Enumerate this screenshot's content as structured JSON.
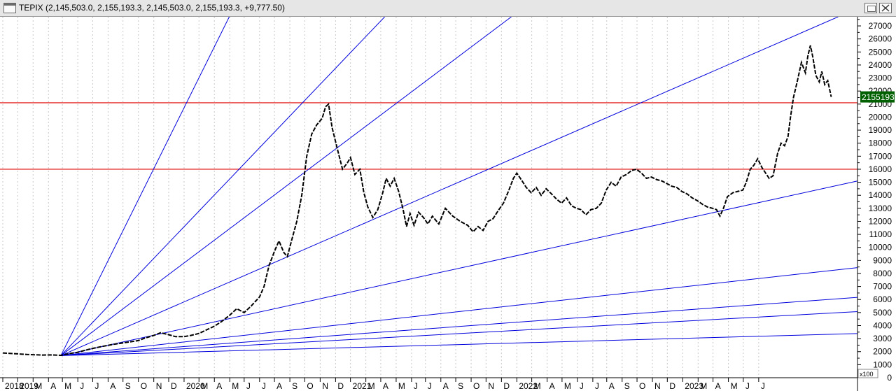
{
  "window": {
    "title": "TEPIX (2,145,503.0, 2,155,193.3, 2,145,503.0, 2,155,193.3, +9,777.50)",
    "restore_icon": "restore-icon",
    "close_icon": "close-icon"
  },
  "chart_data": {
    "type": "line",
    "price_flag": "2155193",
    "multiplier_label": "x100",
    "y_ticks": [
      0,
      1000,
      2000,
      3000,
      4000,
      5000,
      6000,
      7000,
      8000,
      9000,
      10000,
      11000,
      12000,
      13000,
      14000,
      15000,
      16000,
      17000,
      18000,
      19000,
      20000,
      21000,
      22000,
      23000,
      24000,
      25000,
      26000,
      27000
    ],
    "ylim": [
      0,
      27700
    ],
    "x_tick_labels": [
      "2018",
      "2019",
      "M",
      "A",
      "M",
      "J",
      "J",
      "A",
      "S",
      "O",
      "N",
      "D",
      "2020",
      "M",
      "A",
      "M",
      "J",
      "J",
      "A",
      "S",
      "O",
      "N",
      "D",
      "2021",
      "M",
      "A",
      "M",
      "J",
      "J",
      "A",
      "S",
      "O",
      "N",
      "D",
      "2022",
      "M",
      "A",
      "M",
      "J",
      "J",
      "A",
      "S",
      "O",
      "N",
      "D",
      "2023",
      "M",
      "A",
      "M",
      "J",
      "J"
    ],
    "horizontal_lines": [
      {
        "value": 21100,
        "color": "#e00000"
      },
      {
        "value": 16000,
        "color": "#e00000"
      }
    ],
    "fan_origin": {
      "date": "2019-02-26",
      "value": 1700
    },
    "fan_lines": [
      {
        "date": "2020-01-31",
        "value": 27700
      },
      {
        "date": "2020-12-09",
        "value": 27700
      },
      {
        "date": "2021-08-21",
        "value": 27700
      },
      {
        "date": "2023-06-10",
        "value": 27700
      },
      {
        "date": "2023-07-31",
        "value": 15200
      },
      {
        "date": "2023-07-31",
        "value": 8500
      },
      {
        "date": "2023-07-31",
        "value": 6200
      },
      {
        "date": "2023-07-31",
        "value": 5100
      },
      {
        "date": "2023-07-31",
        "value": 3400
      }
    ],
    "colors": {
      "price": "#000000",
      "fan": "#0000dd",
      "horizontal": "#e00000",
      "flag_bg": "#006000",
      "flag_text": "#ffffff"
    },
    "series": [
      {
        "points": [
          [
            "2018-11-01",
            1900
          ],
          [
            "2018-12-01",
            1830
          ],
          [
            "2018-12-20",
            1780
          ],
          [
            "2019-01-05",
            1760
          ],
          [
            "2019-01-20",
            1740
          ],
          [
            "2019-02-05",
            1750
          ],
          [
            "2019-02-26",
            1720
          ],
          [
            "2019-03-15",
            1850
          ],
          [
            "2019-04-01",
            1950
          ],
          [
            "2019-04-15",
            2100
          ],
          [
            "2019-05-01",
            2250
          ],
          [
            "2019-05-20",
            2400
          ],
          [
            "2019-06-10",
            2550
          ],
          [
            "2019-06-28",
            2650
          ],
          [
            "2019-07-15",
            2750
          ],
          [
            "2019-08-01",
            2850
          ],
          [
            "2019-08-15",
            3050
          ],
          [
            "2019-09-01",
            3250
          ],
          [
            "2019-09-15",
            3450
          ],
          [
            "2019-10-01",
            3300
          ],
          [
            "2019-10-15",
            3150
          ],
          [
            "2019-11-01",
            3150
          ],
          [
            "2019-11-15",
            3250
          ],
          [
            "2019-12-01",
            3400
          ],
          [
            "2019-12-15",
            3650
          ],
          [
            "2020-01-01",
            3950
          ],
          [
            "2020-01-15",
            4300
          ],
          [
            "2020-02-01",
            4800
          ],
          [
            "2020-02-15",
            5300
          ],
          [
            "2020-03-01",
            5000
          ],
          [
            "2020-03-15",
            5500
          ],
          [
            "2020-04-01",
            6200
          ],
          [
            "2020-04-10",
            7000
          ],
          [
            "2020-04-20",
            8600
          ],
          [
            "2020-05-01",
            9700
          ],
          [
            "2020-05-10",
            10500
          ],
          [
            "2020-05-20",
            9600
          ],
          [
            "2020-05-27",
            9300
          ],
          [
            "2020-06-05",
            10600
          ],
          [
            "2020-06-15",
            12000
          ],
          [
            "2020-06-25",
            14000
          ],
          [
            "2020-07-05",
            17000
          ],
          [
            "2020-07-15",
            18700
          ],
          [
            "2020-07-25",
            19400
          ],
          [
            "2020-08-05",
            19900
          ],
          [
            "2020-08-12",
            20800
          ],
          [
            "2020-08-18",
            21000
          ],
          [
            "2020-08-25",
            19200
          ],
          [
            "2020-09-05",
            17500
          ],
          [
            "2020-09-15",
            16000
          ],
          [
            "2020-09-25",
            16500
          ],
          [
            "2020-10-01",
            16900
          ],
          [
            "2020-10-10",
            15600
          ],
          [
            "2020-10-20",
            16000
          ],
          [
            "2020-10-28",
            14200
          ],
          [
            "2020-11-05",
            13100
          ],
          [
            "2020-11-15",
            12300
          ],
          [
            "2020-11-25",
            12900
          ],
          [
            "2020-12-05",
            14200
          ],
          [
            "2020-12-12",
            15300
          ],
          [
            "2020-12-20",
            14700
          ],
          [
            "2020-12-28",
            15300
          ],
          [
            "2021-01-06",
            14300
          ],
          [
            "2021-01-15",
            12900
          ],
          [
            "2021-01-22",
            11600
          ],
          [
            "2021-01-29",
            12600
          ],
          [
            "2021-02-06",
            11700
          ],
          [
            "2021-02-15",
            12700
          ],
          [
            "2021-02-25",
            12300
          ],
          [
            "2021-03-06",
            11800
          ],
          [
            "2021-03-15",
            12400
          ],
          [
            "2021-03-28",
            11800
          ],
          [
            "2021-04-10",
            13000
          ],
          [
            "2021-04-25",
            12400
          ],
          [
            "2021-05-10",
            12000
          ],
          [
            "2021-05-25",
            11700
          ],
          [
            "2021-06-05",
            11200
          ],
          [
            "2021-06-15",
            11600
          ],
          [
            "2021-06-25",
            11300
          ],
          [
            "2021-07-05",
            12000
          ],
          [
            "2021-07-15",
            12200
          ],
          [
            "2021-07-25",
            12800
          ],
          [
            "2021-08-05",
            13400
          ],
          [
            "2021-08-15",
            14300
          ],
          [
            "2021-08-25",
            15300
          ],
          [
            "2021-09-01",
            15700
          ],
          [
            "2021-09-10",
            15200
          ],
          [
            "2021-09-20",
            14600
          ],
          [
            "2021-09-30",
            14200
          ],
          [
            "2021-10-10",
            14600
          ],
          [
            "2021-10-20",
            14000
          ],
          [
            "2021-10-30",
            14500
          ],
          [
            "2021-11-10",
            14100
          ],
          [
            "2021-11-20",
            13700
          ],
          [
            "2021-11-30",
            13400
          ],
          [
            "2021-12-10",
            13800
          ],
          [
            "2021-12-20",
            13200
          ],
          [
            "2021-12-30",
            13000
          ],
          [
            "2022-01-08",
            12900
          ],
          [
            "2022-01-18",
            12500
          ],
          [
            "2022-01-28",
            12900
          ],
          [
            "2022-02-08",
            13000
          ],
          [
            "2022-02-18",
            13400
          ],
          [
            "2022-02-28",
            14400
          ],
          [
            "2022-03-10",
            15000
          ],
          [
            "2022-03-20",
            14700
          ],
          [
            "2022-03-30",
            15400
          ],
          [
            "2022-04-10",
            15600
          ],
          [
            "2022-04-20",
            15900
          ],
          [
            "2022-04-30",
            16000
          ],
          [
            "2022-05-10",
            15700
          ],
          [
            "2022-05-20",
            15300
          ],
          [
            "2022-05-30",
            15400
          ],
          [
            "2022-06-10",
            15200
          ],
          [
            "2022-06-20",
            15100
          ],
          [
            "2022-06-30",
            14900
          ],
          [
            "2022-07-10",
            14700
          ],
          [
            "2022-07-20",
            14600
          ],
          [
            "2022-07-30",
            14300
          ],
          [
            "2022-08-10",
            14100
          ],
          [
            "2022-08-20",
            13800
          ],
          [
            "2022-08-30",
            13600
          ],
          [
            "2022-09-10",
            13300
          ],
          [
            "2022-09-20",
            13100
          ],
          [
            "2022-09-30",
            13000
          ],
          [
            "2022-10-08",
            12900
          ],
          [
            "2022-10-15",
            12400
          ],
          [
            "2022-10-22",
            13000
          ],
          [
            "2022-10-30",
            13900
          ],
          [
            "2022-11-10",
            14200
          ],
          [
            "2022-11-20",
            14300
          ],
          [
            "2022-11-30",
            14400
          ],
          [
            "2022-12-07",
            15000
          ],
          [
            "2022-12-15",
            16000
          ],
          [
            "2022-12-22",
            16300
          ],
          [
            "2022-12-30",
            16800
          ],
          [
            "2023-01-08",
            16100
          ],
          [
            "2023-01-15",
            15700
          ],
          [
            "2023-01-22",
            15300
          ],
          [
            "2023-01-30",
            15500
          ],
          [
            "2023-02-08",
            17200
          ],
          [
            "2023-02-15",
            18000
          ],
          [
            "2023-02-22",
            17800
          ],
          [
            "2023-03-01",
            18500
          ],
          [
            "2023-03-06",
            20000
          ],
          [
            "2023-03-12",
            21500
          ],
          [
            "2023-03-20",
            22800
          ],
          [
            "2023-03-28",
            24200
          ],
          [
            "2023-04-05",
            23400
          ],
          [
            "2023-04-10",
            24700
          ],
          [
            "2023-04-15",
            25500
          ],
          [
            "2023-04-20",
            24600
          ],
          [
            "2023-04-26",
            23200
          ],
          [
            "2023-05-03",
            22700
          ],
          [
            "2023-05-08",
            23500
          ],
          [
            "2023-05-14",
            22500
          ],
          [
            "2023-05-20",
            22800
          ],
          [
            "2023-05-27",
            21550
          ]
        ]
      }
    ]
  }
}
